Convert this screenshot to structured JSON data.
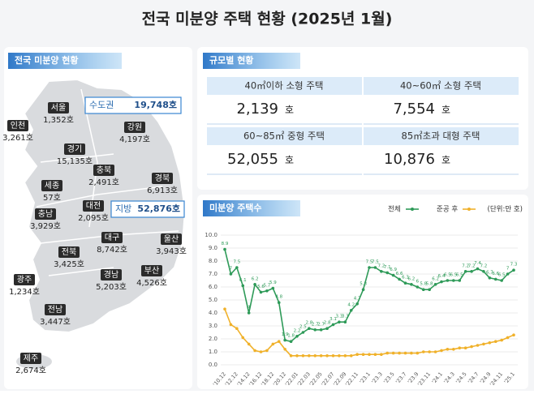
{
  "title": "전국 미분양 주택 현황 (2025년 1월)",
  "map": {
    "label": "전국 미분양 현황",
    "capital_area": {
      "name": "수도권",
      "value": "19,748호"
    },
    "provinces": {
      "name": "지방",
      "value": "52,876호"
    },
    "regions": [
      {
        "name": "서울",
        "value": "1,352호"
      },
      {
        "name": "인천",
        "value": "3,261호"
      },
      {
        "name": "경기",
        "value": "15,135호"
      },
      {
        "name": "강원",
        "value": "4,197호"
      },
      {
        "name": "충북",
        "value": "2,491호"
      },
      {
        "name": "세종",
        "value": "57호"
      },
      {
        "name": "경북",
        "value": "6,913호"
      },
      {
        "name": "충남",
        "value": "3,929호"
      },
      {
        "name": "대전",
        "value": "2,095호"
      },
      {
        "name": "대구",
        "value": "8,742호"
      },
      {
        "name": "울산",
        "value": "3,943호"
      },
      {
        "name": "전북",
        "value": "3,425호"
      },
      {
        "name": "경남",
        "value": "5,203호"
      },
      {
        "name": "부산",
        "value": "4,526호"
      },
      {
        "name": "광주",
        "value": "1,234호"
      },
      {
        "name": "전남",
        "value": "3,447호"
      },
      {
        "name": "제주",
        "value": "2,674호"
      }
    ]
  },
  "size_table": {
    "label": "규모별 현황",
    "cells": [
      {
        "label": "40㎡이하 소형 주택",
        "value": "2,139",
        "unit": "호"
      },
      {
        "label": "40~60㎡ 소형 주택",
        "value": "7,554",
        "unit": "호"
      },
      {
        "label": "60~85㎡ 중형 주택",
        "value": "52,055",
        "unit": "호"
      },
      {
        "label": "85㎡초과 대형 주택",
        "value": "10,876",
        "unit": "호"
      }
    ]
  },
  "chart_data": {
    "type": "line",
    "title": "미분양 주택수",
    "unit_note": "(단위:만 호)",
    "categories": [
      "'10.12",
      null,
      "'12.12",
      null,
      "'14.12",
      null,
      "'16.12",
      null,
      "'18.12",
      null,
      "'20.12",
      null,
      "'22.01",
      null,
      "'22.03",
      null,
      "'22.05",
      null,
      "'22.07",
      null,
      "'22.09",
      null,
      "'22.11",
      null,
      "'23.1",
      null,
      "'23.3",
      null,
      "'23.5",
      null,
      "'23.7",
      null,
      "'23.9",
      null,
      "'23.11",
      null,
      "'24.1",
      null,
      "'24.3",
      null,
      "'24.5",
      null,
      "'24.7",
      null,
      "'24.9",
      null,
      "'24.11",
      null,
      "'25.1"
    ],
    "series": [
      {
        "name": "전체",
        "color": "#2e9a58",
        "values": [
          8.9,
          7.0,
          7.5,
          6.1,
          4.0,
          6.2,
          5.6,
          5.7,
          5.9,
          4.8,
          1.9,
          1.8,
          2.2,
          2.5,
          2.8,
          2.7,
          2.7,
          2.8,
          3.1,
          3.3,
          3.3,
          4.2,
          4.7,
          5.8,
          7.5,
          7.5,
          7.2,
          7.1,
          6.9,
          6.6,
          6.3,
          6.2,
          6.0,
          5.8,
          5.8,
          6.2,
          6.4,
          6.5,
          6.5,
          6.5,
          7.2,
          7.2,
          7.4,
          7.2,
          6.7,
          6.6,
          6.5,
          7.0,
          7.3
        ]
      },
      {
        "name": "준공 후",
        "color": "#f0b12a",
        "values": [
          4.3,
          3.1,
          2.8,
          2.1,
          1.6,
          1.1,
          1.0,
          1.1,
          1.6,
          1.8,
          1.2,
          0.7,
          0.7,
          0.7,
          0.7,
          0.7,
          0.7,
          0.7,
          0.7,
          0.7,
          0.7,
          0.7,
          0.8,
          0.8,
          0.8,
          0.8,
          0.8,
          0.9,
          0.9,
          0.9,
          0.9,
          0.9,
          0.9,
          1.0,
          1.0,
          1.0,
          1.1,
          1.2,
          1.2,
          1.3,
          1.3,
          1.4,
          1.5,
          1.6,
          1.7,
          1.8,
          1.9,
          2.1,
          2.3
        ]
      }
    ],
    "ylim": [
      0,
      10
    ],
    "yticks": [
      {
        "value": 0,
        "label": "0.0"
      },
      {
        "value": 1,
        "label": "1.0"
      },
      {
        "value": 2,
        "label": "2.0"
      },
      {
        "value": 3,
        "label": "3.0"
      },
      {
        "value": 4,
        "label": "4.0"
      },
      {
        "value": 5,
        "label": "5.0"
      },
      {
        "value": 6,
        "label": "6.0"
      },
      {
        "value": 7,
        "label": "7.0"
      },
      {
        "value": 8,
        "label": "8.0"
      },
      {
        "value": 9,
        "label": "9.0"
      },
      {
        "value": 10,
        "label": "10.0"
      }
    ],
    "grid": true
  }
}
